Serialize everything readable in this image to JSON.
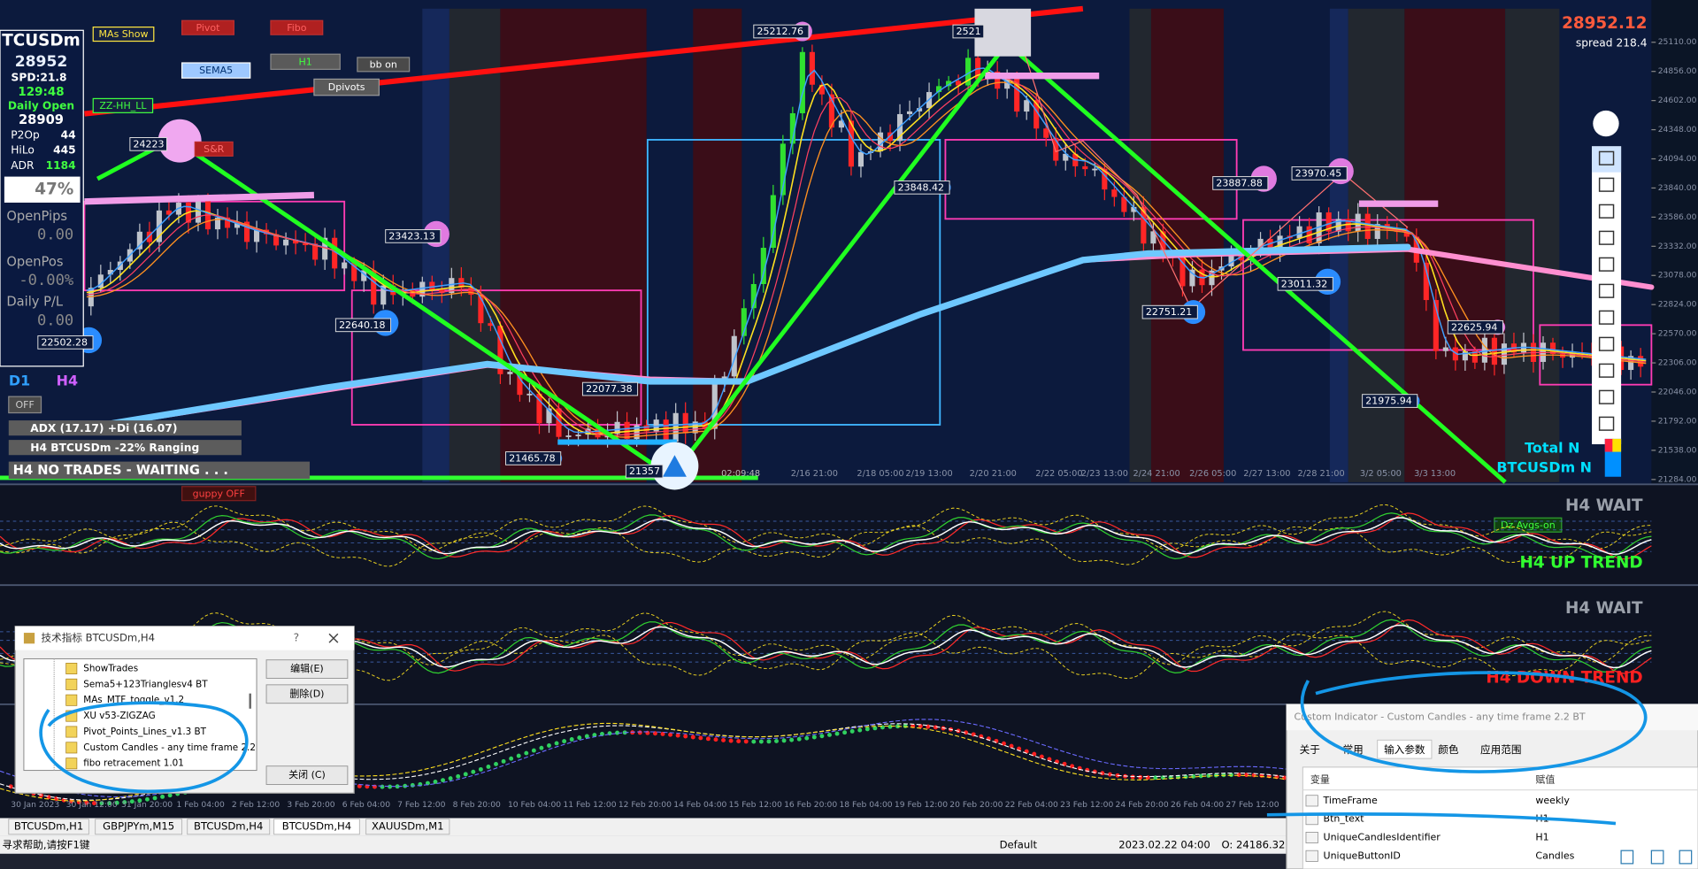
{
  "window_title": "BTCUSDm,H4",
  "buttons": [
    "MAs Show",
    "Pivot",
    "Fibo",
    "SEMA5",
    "H1",
    "bb on",
    "Dpivots",
    "ZZ-HH_LL",
    "S&R",
    "guppy OFF",
    "OFF",
    "Dz Avgs-on"
  ],
  "info_panel": {
    "symbol": "TCUSDm",
    "price": "28952",
    "spread": "SPD:21.8",
    "timer": "129:48",
    "daily_open_label": "Daily Open",
    "daily_open": "28909",
    "rows": [
      [
        "P2Op",
        "44"
      ],
      [
        "HiLo",
        "445"
      ],
      [
        "ADR",
        "1184"
      ]
    ],
    "percent": "47%",
    "open_pips_label": "OpenPips",
    "open_pips": "0.00",
    "open_pos_label": "OpenPos",
    "open_pos": "-0.00%",
    "daily_pl_label": "Daily P/L",
    "daily_pl": "0.00",
    "tf_d1": "D1",
    "tf_h4": "H4"
  },
  "status_lines": [
    "ADX (17.17)   +Di (16.07)",
    "H4 BTCUSDm -22% Ranging",
    "H4  NO TRADES - WAITING . . ."
  ],
  "bid": "28952.12",
  "spread": "spread 218.4",
  "overlay_right": [
    "Total N",
    "BTCUSDm N"
  ],
  "price_labels": [
    "25212.76",
    "2521",
    "24223",
    "23423.13",
    "22640.18",
    "22502.28",
    "22077.38",
    "21465.78",
    "21357",
    "23848.42",
    "23887.88",
    "23970.45",
    "23011.32",
    "22751.21",
    "22625.94",
    "21975.94"
  ],
  "time_labels": [
    "2/16 21:00",
    "2/18 05:00",
    "2/19 13:00",
    "2/20 21:00",
    "2/22 05:00",
    "2/23 13:00",
    "2/24 21:00",
    "2/26 05:00",
    "2/27 13:00",
    "2/28 21:00",
    "3/2 05:00",
    "3/3 13:00"
  ],
  "candle_timer": "02:09:48",
  "price_axis": [
    "25110.00",
    "24856.00",
    "24602.00",
    "24348.00",
    "24094.00",
    "23840.00",
    "23586.00",
    "23332.00",
    "23078.00",
    "22824.00",
    "22570.00",
    "22306.00",
    "22046.00",
    "21792.00",
    "21538.00",
    "21284.00"
  ],
  "indicator_labels": [
    "H4 WAIT",
    "H4 UP TREND",
    "H4 WAIT",
    "H4 DOWN TREND"
  ],
  "lower_time_labels": [
    "30 Jan 2023",
    "30 Jan 12:00",
    "31 Jan 20:00",
    "1 Feb 04:00",
    "2 Feb 12:00",
    "3 Feb 20:00",
    "6 Feb 04:00",
    "7 Feb 12:00",
    "8 Feb 20:00",
    "10 Feb 04:00",
    "11 Feb 12:00",
    "12 Feb 20:00",
    "14 Feb 04:00",
    "15 Feb 12:00",
    "16 Feb 20:00",
    "18 Feb 04:00",
    "19 Feb 12:00",
    "20 Feb 20:00",
    "22 Feb 04:00",
    "23 Feb 12:00",
    "24 Feb 20:00",
    "26 Feb 04:00",
    "27 Feb 12:00"
  ],
  "tabs": [
    "BTCUSDm,H1",
    "GBPJPYm,M15",
    "BTCUSDm,H4",
    "BTCUSDm,H4",
    "XAUUSDm,M1"
  ],
  "statusbar": {
    "help": "寻求帮助,请按F1键",
    "profile": "Default",
    "time": "2023.02.22 04:00",
    "open": "O: 24186.32"
  },
  "indicators_dialog": {
    "title": "技术指标 BTCUSDm,H4",
    "help": "?",
    "items": [
      "ShowTrades",
      "Sema5+123Trianglesv4 BT",
      "MAs_MTF_toggle_v1.2",
      "XU v53-ZIGZAG",
      "Pivot_Points_Lines_v1.3 BT",
      "Custom Candles - any time frame 2.2",
      "fibo retracement 1.01"
    ],
    "buttons": [
      "编辑(E)",
      "删除(D)",
      "关闭 (C)"
    ]
  },
  "custom_dialog": {
    "title": "Custom Indicator - Custom Candles - any time frame 2.2 BT",
    "tabs": [
      "关于",
      "常用",
      "输入参数",
      "颜色",
      "应用范围"
    ],
    "header": [
      "变量",
      "赋值"
    ],
    "rows": [
      [
        "TimeFrame",
        "weekly"
      ],
      [
        "Btn_text",
        "H1"
      ],
      [
        "UniqueCandlesIdentifier",
        "H1"
      ],
      [
        "UniqueButtonID",
        "Candles"
      ]
    ]
  }
}
